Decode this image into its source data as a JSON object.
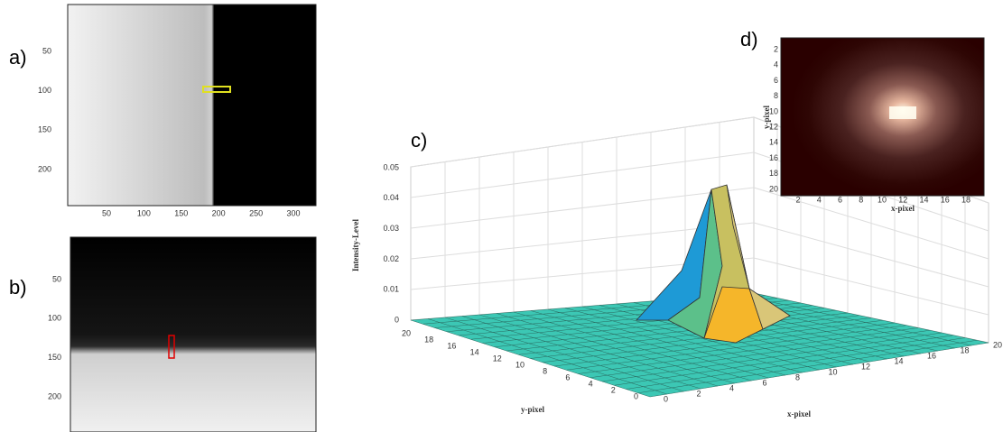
{
  "panel_a": {
    "label": "a)",
    "xticks": [
      "50",
      "100",
      "150",
      "200",
      "250",
      "300"
    ],
    "yticks": [
      "50",
      "100",
      "150",
      "200"
    ]
  },
  "panel_b": {
    "label": "b)",
    "yticks": [
      "50",
      "100",
      "150",
      "200"
    ]
  },
  "panel_c": {
    "label": "c)",
    "zlabel": "Intensity-Level",
    "xlabel": "x-pixel",
    "ylabel": "y-pixel",
    "zticks": [
      "0",
      "0.01",
      "0.02",
      "0.03",
      "0.04",
      "0.05"
    ],
    "xticks": [
      "0",
      "2",
      "4",
      "6",
      "8",
      "10",
      "12",
      "14",
      "16",
      "18",
      "20"
    ],
    "yticks": [
      "0",
      "2",
      "4",
      "6",
      "8",
      "10",
      "12",
      "14",
      "16",
      "18",
      "20"
    ]
  },
  "panel_d": {
    "label": "d)",
    "xlabel": "x-pixel",
    "ylabel": "y-pixel",
    "xticks": [
      "2",
      "4",
      "6",
      "8",
      "10",
      "12",
      "14",
      "16",
      "18"
    ],
    "yticks": [
      "2",
      "4",
      "6",
      "8",
      "10",
      "12",
      "14",
      "16",
      "18",
      "20"
    ]
  }
}
